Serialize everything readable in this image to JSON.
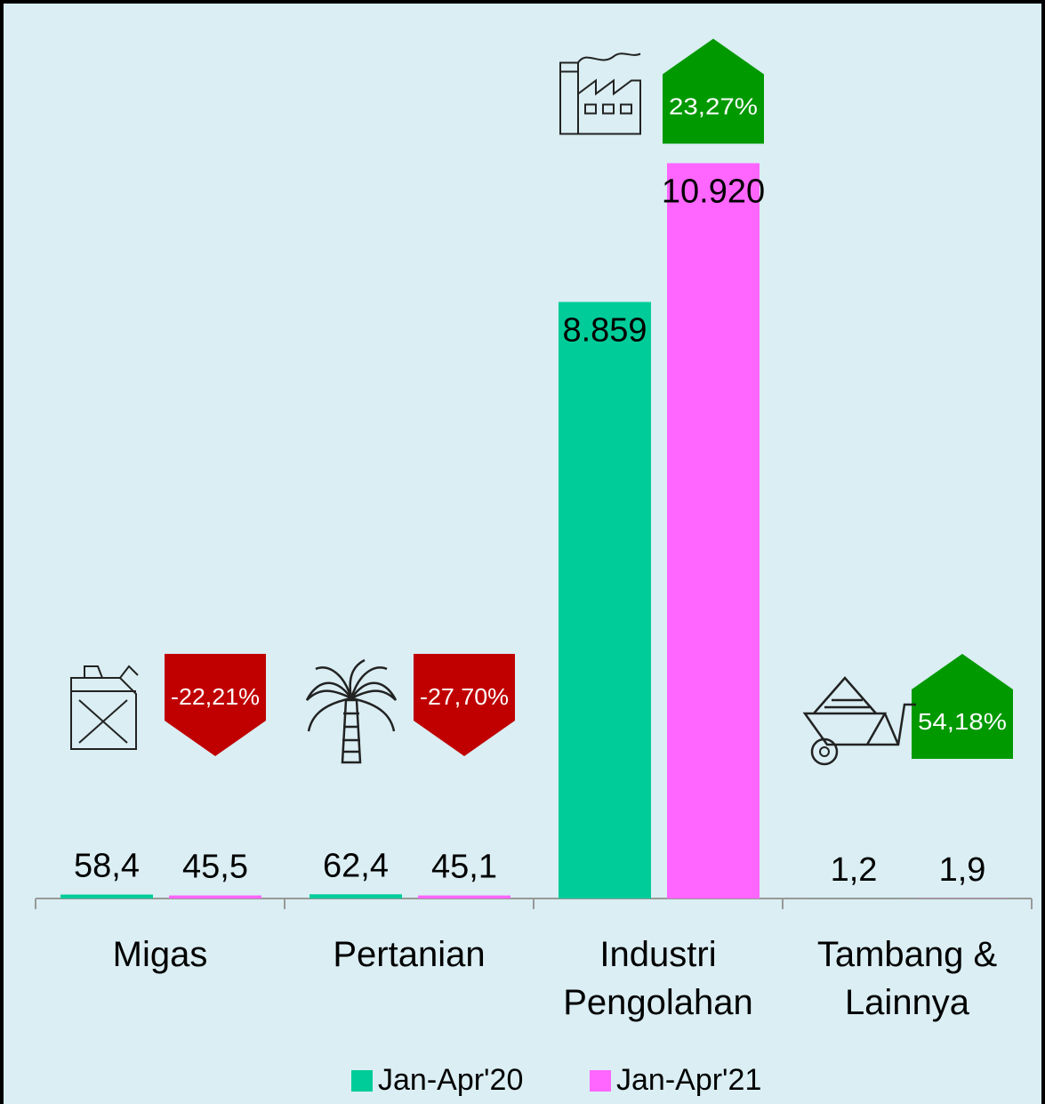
{
  "chart_data": {
    "type": "bar",
    "categories": [
      "Migas",
      "Pertanian",
      "Industri Pengolahan",
      "Tambang & Lainnya"
    ],
    "series": [
      {
        "name": "Jan-Apr'20",
        "color": "#00cc99",
        "values": [
          58.4,
          62.4,
          8859,
          1.2
        ],
        "value_labels": [
          "58,4",
          "62,4",
          "8.859",
          "1,2"
        ]
      },
      {
        "name": "Jan-Apr'21",
        "color": "#ff66ff",
        "values": [
          45.5,
          45.1,
          10920,
          1.9
        ],
        "value_labels": [
          "45,5",
          "45,1",
          "10.920",
          "1,9"
        ]
      }
    ],
    "changes": [
      -22.21,
      -27.7,
      23.27,
      54.18
    ],
    "change_labels": [
      "-22,21%",
      "-27,70%",
      "23,27%",
      "54,18%"
    ],
    "change_colors": {
      "down": "#c00000",
      "up": "#009900"
    },
    "ylim": [
      0,
      13000
    ],
    "legend": "bottom"
  }
}
